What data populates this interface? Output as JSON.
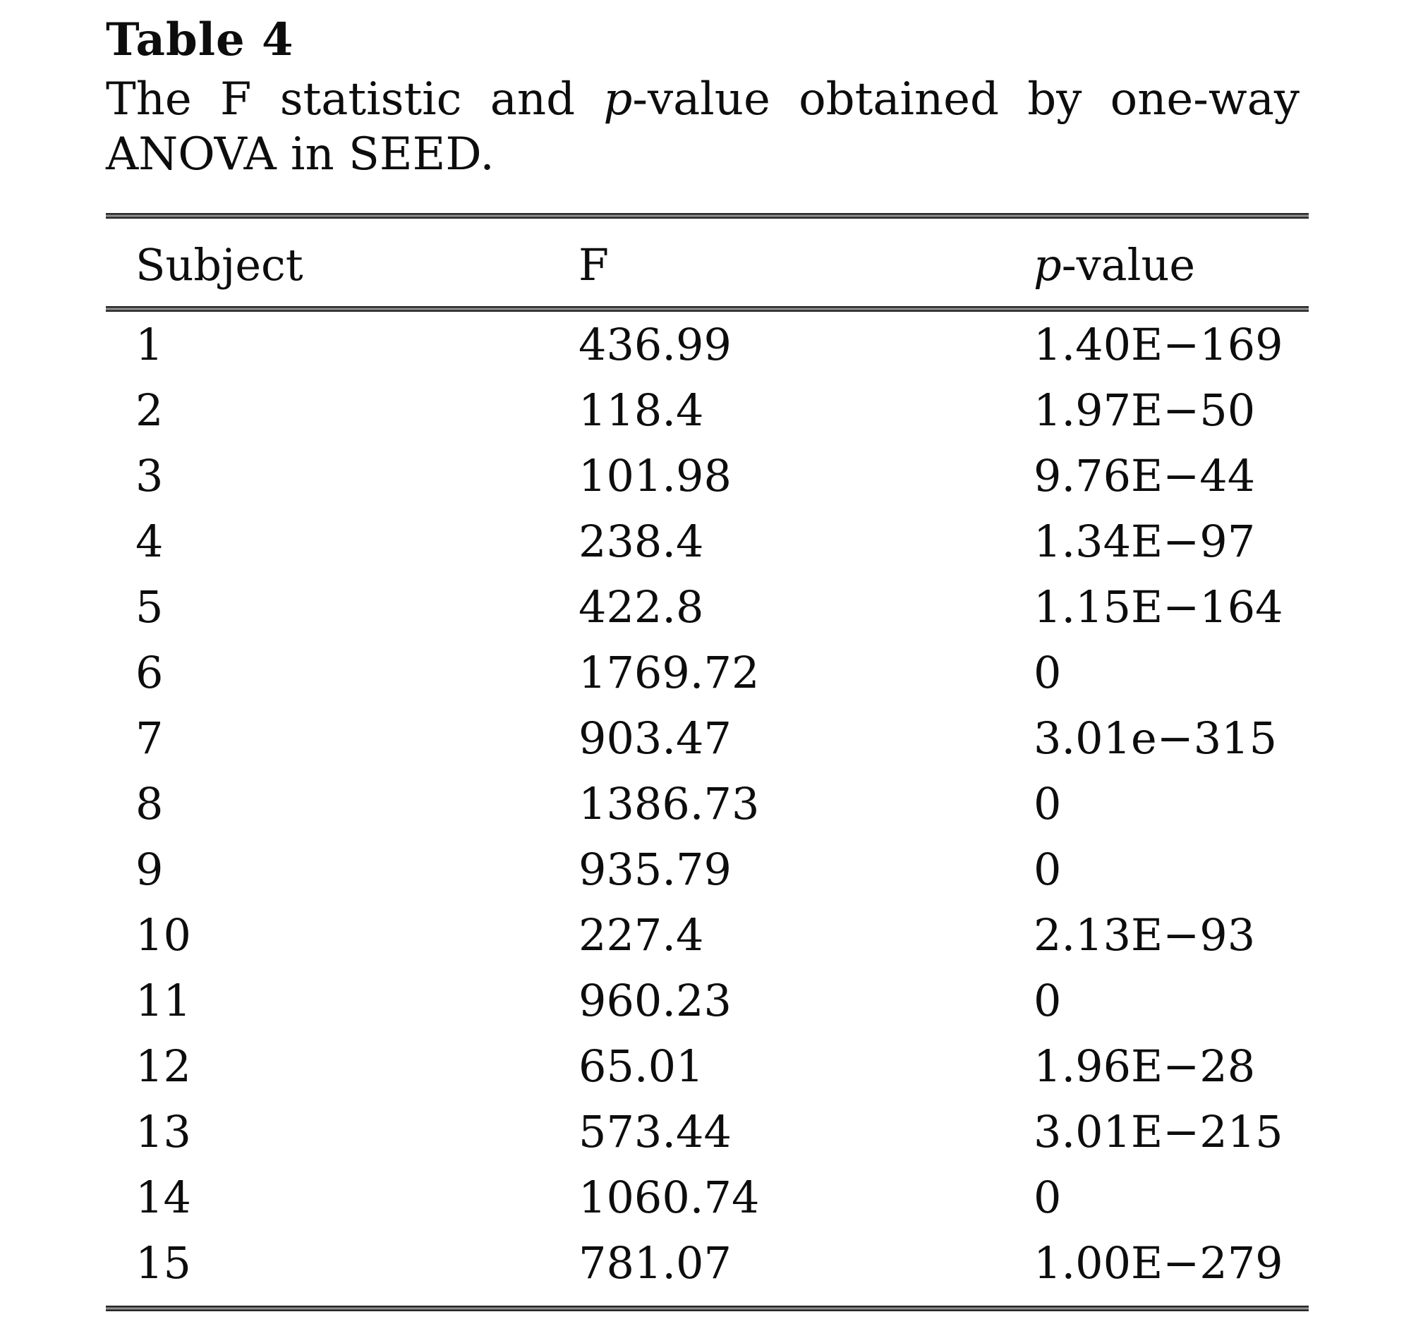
{
  "colors": {
    "background": "#ffffff",
    "text": "#0d0d0d",
    "rule": "#262626"
  },
  "table": {
    "title": "Table 4",
    "caption": {
      "line1_before": "The F statistic and ",
      "line1_italic_p": "p",
      "line1_after": "-value obtained by one-way",
      "line2": "ANOVA in SEED."
    },
    "columns": {
      "subject": "Subject",
      "f": "F",
      "p_italic": "p",
      "p_rest": "-value"
    },
    "rows": [
      {
        "subject": "1",
        "f": "436.99",
        "p": "1.40E−169"
      },
      {
        "subject": "2",
        "f": "118.4",
        "p": "1.97E−50"
      },
      {
        "subject": "3",
        "f": "101.98",
        "p": "9.76E−44"
      },
      {
        "subject": "4",
        "f": "238.4",
        "p": "1.34E−97"
      },
      {
        "subject": "5",
        "f": "422.8",
        "p": "1.15E−164"
      },
      {
        "subject": "6",
        "f": "1769.72",
        "p": "0"
      },
      {
        "subject": "7",
        "f": "903.47",
        "p": "3.01e−315"
      },
      {
        "subject": "8",
        "f": "1386.73",
        "p": "0"
      },
      {
        "subject": "9",
        "f": "935.79",
        "p": "0"
      },
      {
        "subject": "10",
        "f": "227.4",
        "p": "2.13E−93"
      },
      {
        "subject": "11",
        "f": "960.23",
        "p": "0"
      },
      {
        "subject": "12",
        "f": "65.01",
        "p": "1.96E−28"
      },
      {
        "subject": "13",
        "f": "573.44",
        "p": "3.01E−215"
      },
      {
        "subject": "14",
        "f": "1060.74",
        "p": "0"
      },
      {
        "subject": "15",
        "f": "781.07",
        "p": "1.00E−279"
      }
    ]
  }
}
